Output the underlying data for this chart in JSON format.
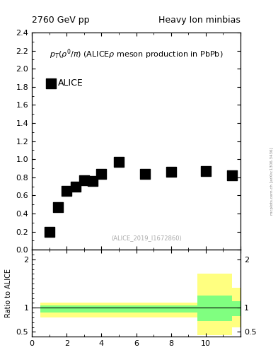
{
  "title_left": "2760 GeV pp",
  "title_right": "Heavy Ion minbias",
  "subtitle": "p_{T}(\\rho^{0}/\\pi) (ALICEp meson production in PbPb)",
  "watermark": "(ALICE_2019_I1672860)",
  "side_text": "mcplots.cern.ch [arXiv:1306.3436]",
  "data_x": [
    1.0,
    1.5,
    2.0,
    2.5,
    3.0,
    3.5,
    4.0,
    5.0,
    6.5,
    8.0,
    10.0,
    11.5
  ],
  "data_y": [
    0.2,
    0.47,
    0.65,
    0.7,
    0.77,
    0.76,
    0.84,
    0.97,
    0.84,
    0.86,
    0.87,
    0.82
  ],
  "legend_label": "ALICE",
  "xlim": [
    0,
    12
  ],
  "ylim_main": [
    0,
    2.4
  ],
  "main_yticks": [
    0.0,
    0.2,
    0.4,
    0.6,
    0.8,
    1.0,
    1.2,
    1.4,
    1.6,
    1.8,
    2.0,
    2.2,
    2.4
  ],
  "ylim_ratio": [
    0.4,
    2.2
  ],
  "ratio_yticks": [
    0.5,
    1.0,
    2.0
  ],
  "ratio_ylabel": "Ratio to ALICE",
  "ratio_line_y": 1.0,
  "yellow_band_steps_x": [
    0.5,
    9.5,
    9.5,
    11.5,
    11.5,
    12.5
  ],
  "yellow_band_steps_ylo": [
    0.8,
    0.8,
    0.43,
    0.43,
    0.6,
    0.6
  ],
  "yellow_band_steps_yhi": [
    1.1,
    1.1,
    1.7,
    1.7,
    1.42,
    1.42
  ],
  "green_band_steps_x": [
    0.5,
    9.5,
    9.5,
    11.5,
    11.5,
    12.5
  ],
  "green_band_steps_ylo": [
    0.9,
    0.9,
    0.72,
    0.72,
    0.82,
    0.82
  ],
  "green_band_steps_yhi": [
    1.05,
    1.05,
    1.25,
    1.25,
    1.14,
    1.14
  ],
  "yellow_color": "#ffff80",
  "green_color": "#80ff80",
  "marker_color": "black",
  "marker": "s",
  "marker_size": 5,
  "title_fontsize": 9,
  "subtitle_fontsize": 8,
  "tick_fontsize": 8,
  "legend_fontsize": 9
}
